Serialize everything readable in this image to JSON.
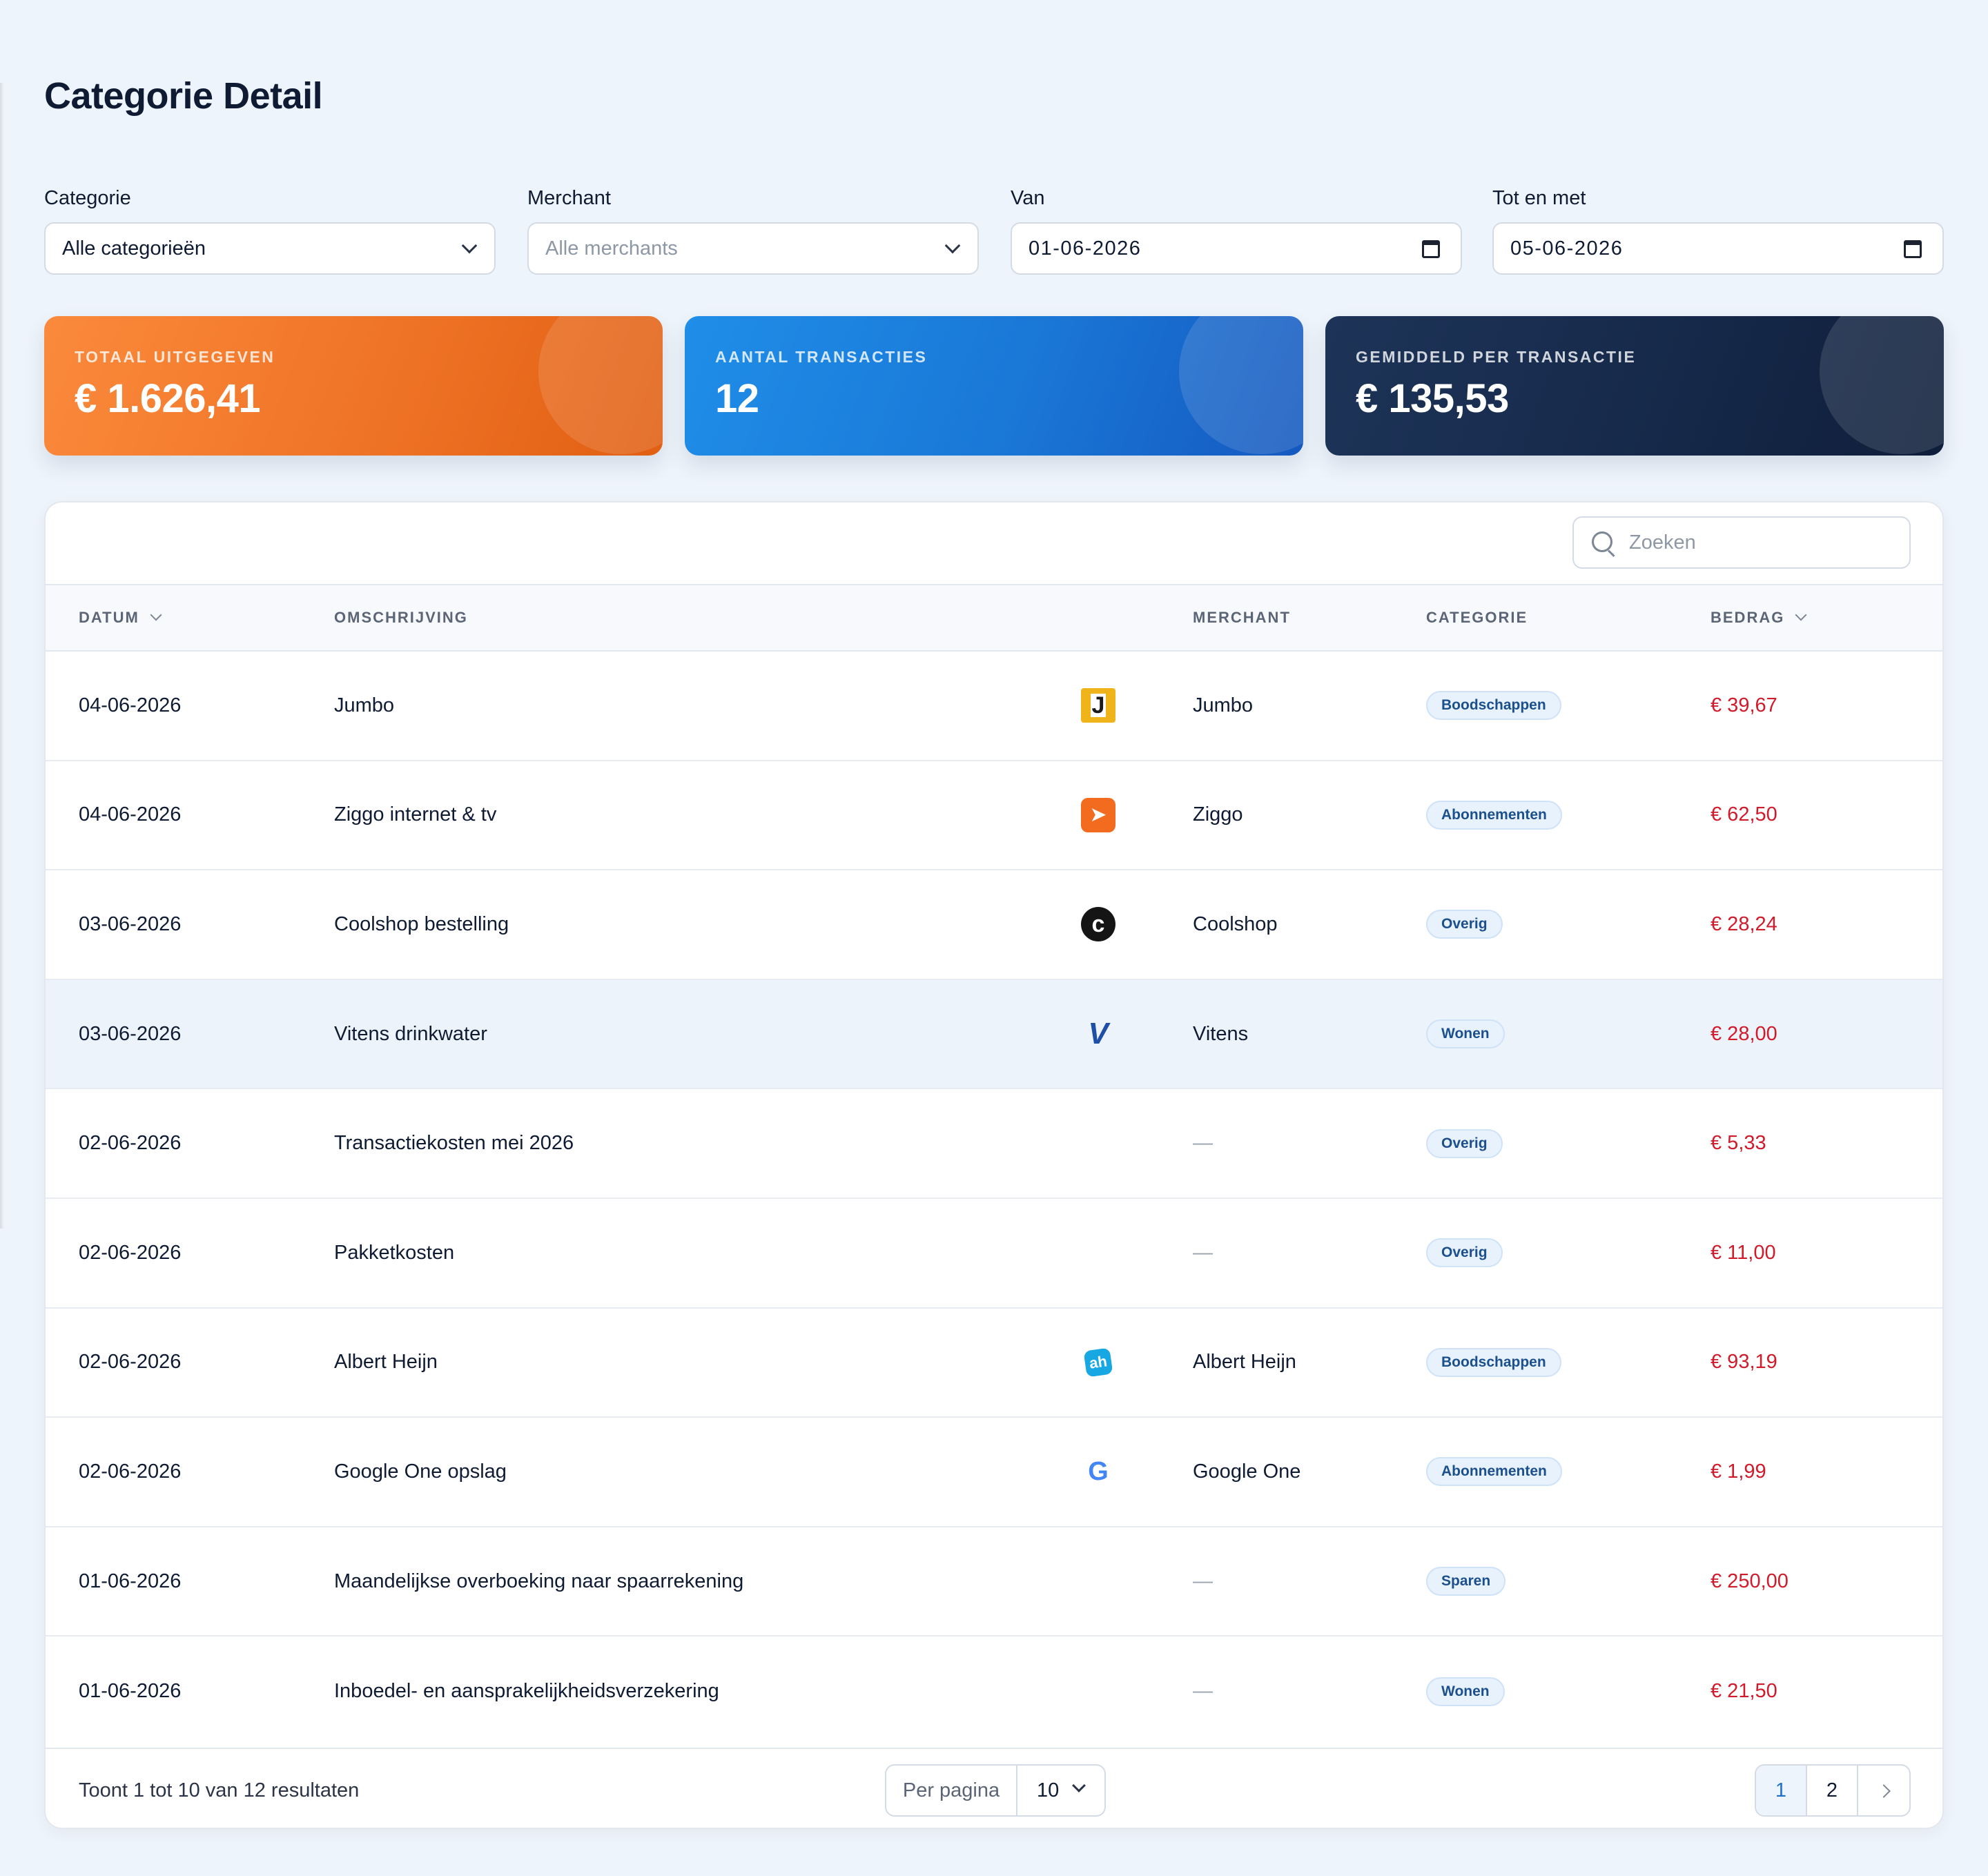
{
  "page": {
    "title": "Categorie Detail"
  },
  "filters": {
    "categorie": {
      "label": "Categorie",
      "value": "Alle categorieën"
    },
    "merchant": {
      "label": "Merchant",
      "placeholder": "Alle merchants"
    },
    "van": {
      "label": "Van",
      "value": "01-06-2026"
    },
    "tot": {
      "label": "Tot en met",
      "value": "05-06-2026"
    }
  },
  "cards": {
    "totaal": {
      "label": "TOTAAL UITGEGEVEN",
      "value": "€ 1.626,41",
      "color": "#ef7326"
    },
    "aantal": {
      "label": "AANTAL TRANSACTIES",
      "value": "12",
      "color": "#1a77d6"
    },
    "gemiddeld": {
      "label": "GEMIDDELD PER TRANSACTIE",
      "value": "€ 135,53",
      "color": "#16294a"
    }
  },
  "search": {
    "placeholder": "Zoeken"
  },
  "table": {
    "headers": {
      "datum": "DATUM",
      "omschrijving": "OMSCHRIJVING",
      "merchant": "MERCHANT",
      "categorie": "CATEGORIE",
      "bedrag": "BEDRAG"
    },
    "rows": [
      {
        "datum": "04-06-2026",
        "omschrijving": "Jumbo",
        "logo": "jumbo-logo-icon",
        "merchant": "Jumbo",
        "categorie": "Boodschappen",
        "bedrag": "€ 39,67"
      },
      {
        "datum": "04-06-2026",
        "omschrijving": "Ziggo internet & tv",
        "logo": "ziggo-logo-icon",
        "merchant": "Ziggo",
        "categorie": "Abonnementen",
        "bedrag": "€ 62,50"
      },
      {
        "datum": "03-06-2026",
        "omschrijving": "Coolshop bestelling",
        "logo": "coolshop-logo-icon",
        "merchant": "Coolshop",
        "categorie": "Overig",
        "bedrag": "€ 28,24"
      },
      {
        "datum": "03-06-2026",
        "omschrijving": "Vitens drinkwater",
        "logo": "vitens-logo-icon",
        "merchant": "Vitens",
        "categorie": "Wonen",
        "bedrag": "€ 28,00"
      },
      {
        "datum": "02-06-2026",
        "omschrijving": "Transactiekosten mei 2026",
        "logo": "",
        "merchant": "—",
        "categorie": "Overig",
        "bedrag": "€ 5,33"
      },
      {
        "datum": "02-06-2026",
        "omschrijving": "Pakketkosten",
        "logo": "",
        "merchant": "—",
        "categorie": "Overig",
        "bedrag": "€ 11,00"
      },
      {
        "datum": "02-06-2026",
        "omschrijving": "Albert Heijn",
        "logo": "albert-heijn-logo-icon",
        "merchant": "Albert Heijn",
        "categorie": "Boodschappen",
        "bedrag": "€ 93,19"
      },
      {
        "datum": "02-06-2026",
        "omschrijving": "Google One opslag",
        "logo": "google-logo-icon",
        "merchant": "Google One",
        "categorie": "Abonnementen",
        "bedrag": "€ 1,99"
      },
      {
        "datum": "01-06-2026",
        "omschrijving": "Maandelijkse overboeking naar spaarrekening",
        "logo": "",
        "merchant": "—",
        "categorie": "Sparen",
        "bedrag": "€ 250,00"
      },
      {
        "datum": "01-06-2026",
        "omschrijving": "Inboedel- en aansprakelijkheidsverzekering",
        "logo": "",
        "merchant": "—",
        "categorie": "Wonen",
        "bedrag": "€ 21,50"
      }
    ]
  },
  "footer": {
    "summary": "Toont 1 tot 10 van 12 resultaten",
    "per_page_label": "Per pagina",
    "per_page_value": "10",
    "pages": [
      "1",
      "2"
    ],
    "current_page": "1"
  },
  "colors": {
    "amount_negative": "#d11a2a",
    "accent": "#1f6fd0"
  }
}
